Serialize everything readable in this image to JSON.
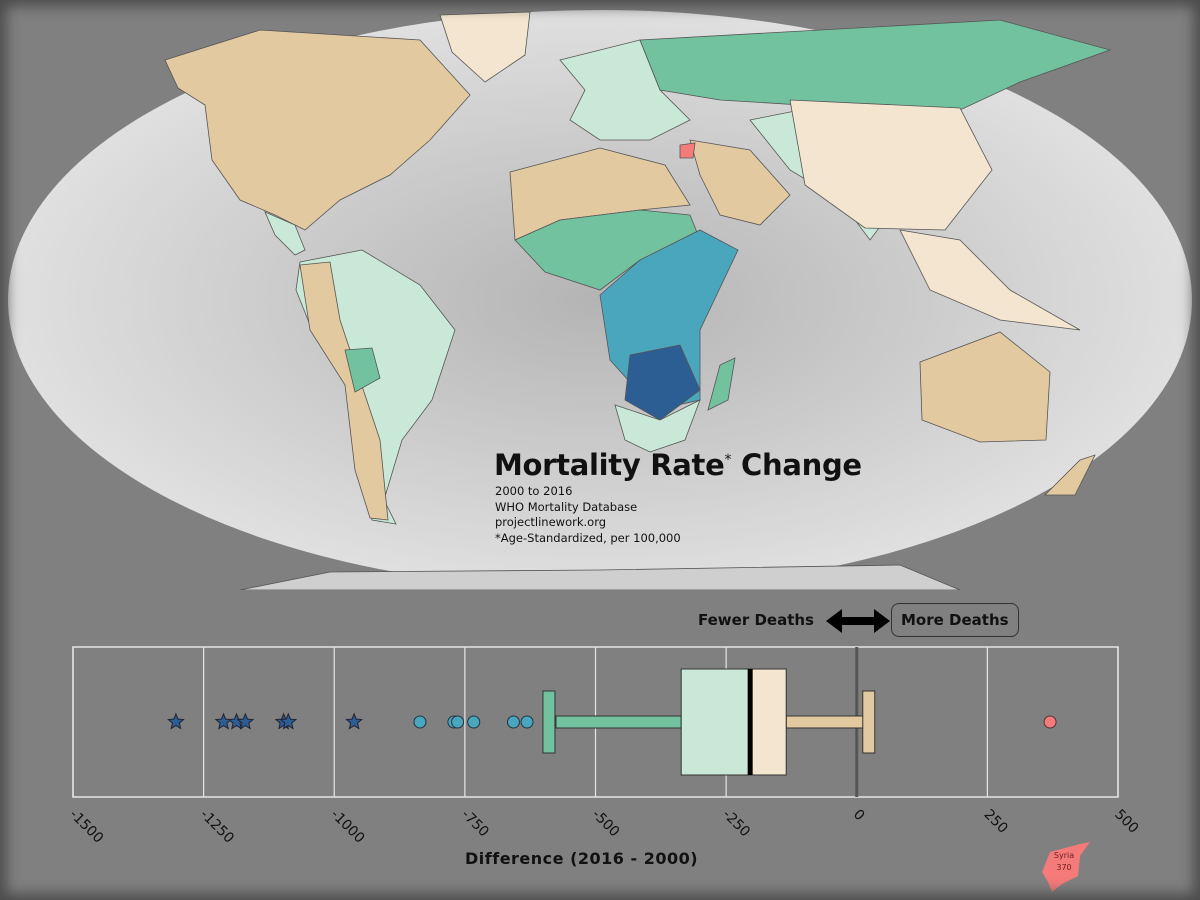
{
  "title": {
    "main": "Mortality Rate",
    "asterisk": "*",
    "suffix": "Change"
  },
  "subtitle_lines": [
    "2000 to 2016",
    "WHO Mortality Database",
    "projectlinework.org",
    "*Age-Standardized, per 100,000"
  ],
  "direction": {
    "fewer": "Fewer Deaths",
    "more": "More Deaths"
  },
  "highlight": {
    "country": "Syria",
    "value": "370"
  },
  "colors": {
    "background": "#808080",
    "ocean": "#dcdcdc",
    "tan": "#e2c9a0",
    "light_tan": "#f3e5d0",
    "light_green": "#c9e8d7",
    "green": "#72c2a0",
    "teal": "#4aa6bc",
    "dark_blue": "#2c5d93",
    "red": "#f57a7a"
  },
  "chart_data": {
    "type": "box",
    "xlabel": "Difference (2016 - 2000)",
    "xlim": [
      -1500,
      500
    ],
    "ticks": [
      -1500,
      -1250,
      -1000,
      -750,
      -500,
      -250,
      0,
      250,
      500
    ],
    "tick_labels": [
      "-1500",
      "-1250",
      "-1000",
      "-750",
      "-500",
      "-250",
      "0",
      "250",
      "500"
    ],
    "grid": true,
    "reference_line": 0,
    "box": {
      "whisker_low": -591,
      "q1": -336,
      "median": -204,
      "q3": -135,
      "whisker_high": 23
    },
    "extreme_outliers": [
      -1303,
      -1212,
      -1187,
      -1170,
      -1097,
      -1088,
      -962
    ],
    "outliers_low": [
      -836,
      -771,
      -764,
      -733,
      -657,
      -631
    ],
    "outliers_high": [
      370
    ]
  }
}
